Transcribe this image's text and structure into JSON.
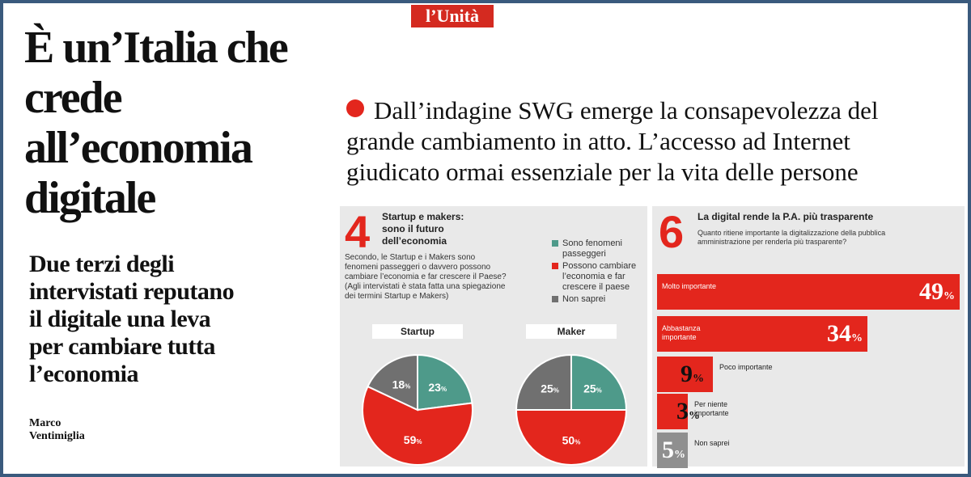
{
  "colors": {
    "red": "#e3261d",
    "teal": "#4e9a8a",
    "gray": "#707070",
    "panel": "#e9e9e9",
    "frame": "#3a5a7d"
  },
  "masthead": {
    "logo": "l’Unità"
  },
  "article": {
    "headline": "È un’Italia che crede all’economia digitale",
    "subhead": "Due terzi degli intervistati reputano il digitale una leva per cambiare tutta l’economia",
    "author": "Marco Ventimiglia",
    "intro": "Dall’indagine SWG emerge la consapevolezza del grande cambiamento in atto. L’accesso ad Internet giudicato ormai essenziale per la vita delle persone"
  },
  "panel4": {
    "number": "4",
    "title": "Startup e makers: sono il futuro dell’economia",
    "question": "Secondo, le Startup e i Makers sono fenomeni passeggeri o davvero possono cambiare l’economia e far crescere il Paese? (Agli intervistati è stata fatta una spiegazione dei termini Startup e Makers)",
    "legend": [
      {
        "label": "Sono fenomeni passeggeri",
        "color": "#4e9a8a"
      },
      {
        "label": "Possono cambiare l’economia e far crescere il paese",
        "color": "#e3261d"
      },
      {
        "label": "Non saprei",
        "color": "#707070"
      }
    ]
  },
  "panel6": {
    "number": "6",
    "title": "La digital rende la P.A. più trasparente",
    "question": "Quanto ritiene importante la digitalizzazione della pubblica amministrazione per renderla più trasparente?"
  },
  "chart_data": [
    {
      "type": "pie",
      "title": "Startup",
      "categories": [
        "Sono fenomeni passeggeri",
        "Possono cambiare l’economia e far crescere il paese",
        "Non saprei"
      ],
      "values": [
        23,
        59,
        18
      ],
      "value_labels": [
        "23",
        "59",
        "18"
      ],
      "unit": "%"
    },
    {
      "type": "pie",
      "title": "Maker",
      "categories": [
        "Sono fenomeni passeggeri",
        "Possono cambiare l’economia e far crescere il paese",
        "Non saprei"
      ],
      "values": [
        25,
        50,
        25
      ],
      "value_labels": [
        "25",
        "50",
        "25"
      ],
      "unit": "%"
    },
    {
      "type": "bar",
      "title": "La digital rende la P.A. più trasparente",
      "categories": [
        "Molto importante",
        "Abbastanza importante",
        "Poco importante",
        "Per niente importante",
        "Non saprei"
      ],
      "values": [
        49,
        34,
        9,
        3,
        5
      ],
      "value_labels": [
        "49",
        "34",
        "9",
        "3",
        "5"
      ],
      "unit": "%",
      "ylim": [
        0,
        49
      ]
    }
  ]
}
